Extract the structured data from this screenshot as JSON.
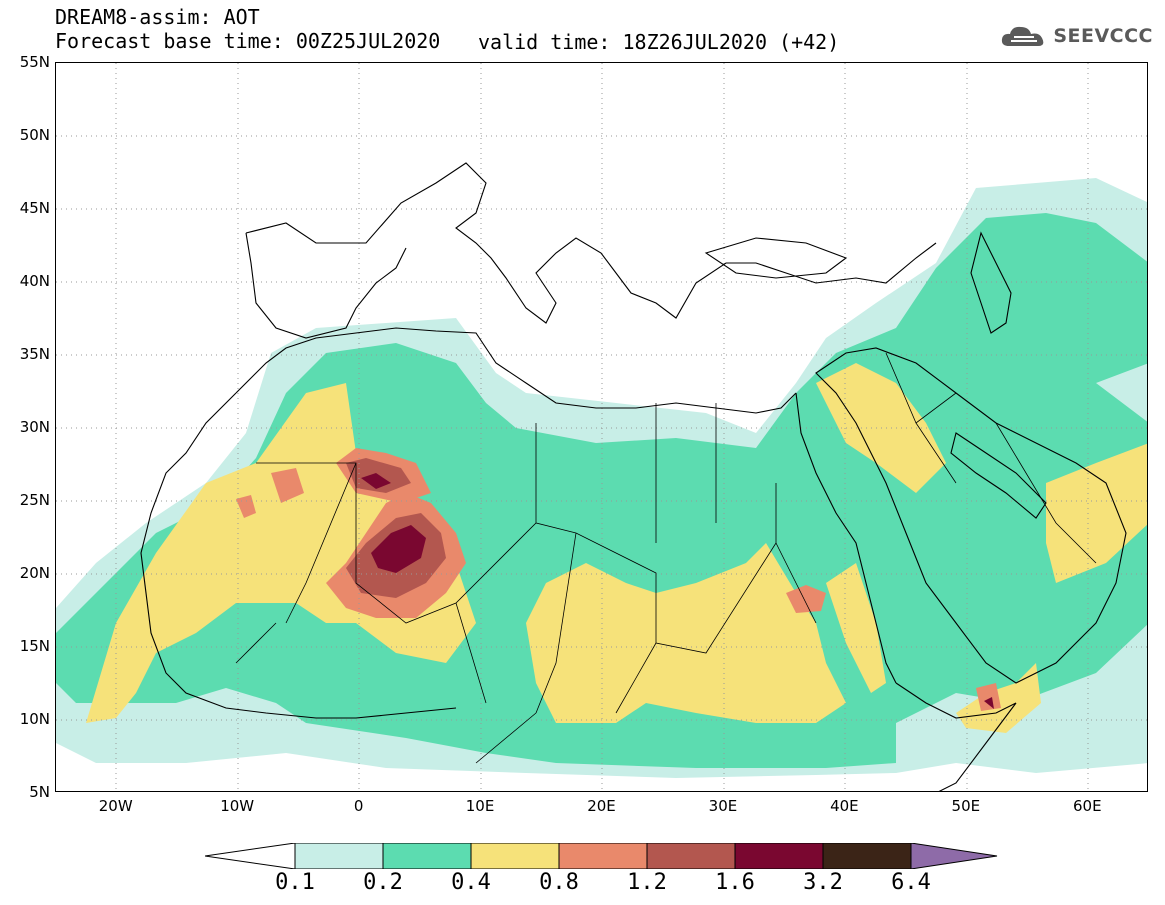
{
  "header": {
    "title": "DREAM8-assim: AOT",
    "base_time": "Forecast base time: 00Z25JUL2020",
    "valid_time": "valid time: 18Z26JUL2020 (+42)"
  },
  "logo": {
    "text": "SEEVCCC",
    "icon": "cloud-icon"
  },
  "map": {
    "lat_ticks": [
      "55N",
      "50N",
      "45N",
      "40N",
      "35N",
      "30N",
      "25N",
      "20N",
      "15N",
      "10N",
      "5N"
    ],
    "lon_ticks": [
      "20W",
      "10W",
      "0",
      "10E",
      "20E",
      "30E",
      "40E",
      "50E",
      "60E"
    ],
    "lat_range": [
      5,
      55
    ],
    "lon_range": [
      -25,
      65
    ],
    "background_colors": {
      "coast": "#000000",
      "grid": "#999999",
      "background": "#ffffff"
    }
  },
  "colorbar": {
    "labels": [
      "0.1",
      "0.2",
      "0.4",
      "0.8",
      "1.2",
      "1.6",
      "3.2",
      "6.4"
    ],
    "colors": [
      "#ffffff",
      "#c8eee7",
      "#5cdcb0",
      "#f6e27a",
      "#e9896b",
      "#b3574f",
      "#7a0730",
      "#3b2417",
      "#8e6ba8"
    ]
  }
}
